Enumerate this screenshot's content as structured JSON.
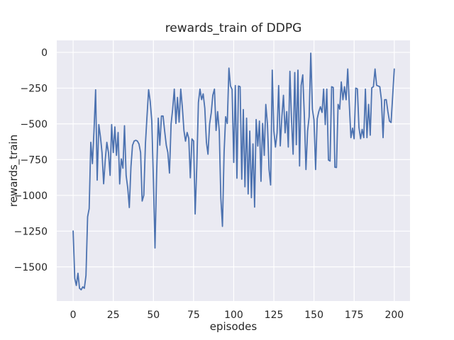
{
  "chart_data": {
    "type": "line",
    "title": "rewards_train of DDPG",
    "xlabel": "episodes",
    "ylabel": "rewards_train",
    "xlim": [
      -10.2,
      209.8
    ],
    "ylim": [
      -1739,
      84
    ],
    "grid": true,
    "legend": false,
    "xticks": {
      "values": [
        0,
        25,
        50,
        75,
        100,
        125,
        150,
        175,
        200
      ],
      "labels": [
        "0",
        "25",
        "50",
        "75",
        "100",
        "125",
        "150",
        "175",
        "200"
      ]
    },
    "yticks": {
      "values": [
        0,
        -250,
        -500,
        -750,
        -1000,
        -1250,
        -1500
      ],
      "labels": [
        "0",
        "−250",
        "−500",
        "−750",
        "−1000",
        "−1250",
        "−1500"
      ]
    },
    "style": {
      "figure_bg": "#ffffff",
      "axes_bg": "#eaeaf2",
      "grid_color": "#ffffff",
      "line_color": "#4c72b0",
      "text_color": "#262626",
      "line_width": 1.8,
      "grid_width": 1.2
    },
    "series": [
      {
        "name": "rewards_train",
        "x_start": 0,
        "x_step": 1,
        "values": [
          -1249,
          -1580,
          -1630,
          -1545,
          -1650,
          -1660,
          -1640,
          -1650,
          -1560,
          -1150,
          -1093,
          -629,
          -778,
          -550,
          -262,
          -894,
          -505,
          -590,
          -700,
          -919,
          -750,
          -629,
          -700,
          -860,
          -505,
          -700,
          -521,
          -720,
          -560,
          -920,
          -745,
          -810,
          -513,
          -860,
          -950,
          -1085,
          -800,
          -650,
          -620,
          -615,
          -620,
          -640,
          -700,
          -1040,
          -1000,
          -640,
          -450,
          -261,
          -340,
          -480,
          -900,
          -1368,
          -850,
          -460,
          -649,
          -445,
          -445,
          -550,
          -649,
          -700,
          -844,
          -500,
          -397,
          -257,
          -497,
          -315,
          -488,
          -257,
          -380,
          -546,
          -621,
          -560,
          -600,
          -877,
          -605,
          -620,
          -1130,
          -800,
          -350,
          -257,
          -330,
          -290,
          -390,
          -629,
          -712,
          -500,
          -422,
          -300,
          -257,
          -546,
          -414,
          -550,
          -1018,
          -1217,
          -700,
          -450,
          -497,
          -110,
          -235,
          -260,
          -770,
          -232,
          -880,
          -235,
          -240,
          -887,
          -400,
          -940,
          -460,
          -990,
          -550,
          -1016,
          -640,
          -1082,
          -470,
          -655,
          -480,
          -902,
          -497,
          -720,
          -364,
          -500,
          -819,
          -927,
          -124,
          -546,
          -662,
          -563,
          -232,
          -654,
          -447,
          -300,
          -563,
          -414,
          -662,
          -132,
          -464,
          -712,
          -141,
          -646,
          -124,
          -795,
          -232,
          -157,
          -450,
          -819,
          -550,
          -450,
          -5,
          -397,
          -472,
          -819,
          -464,
          -414,
          -380,
          -420,
          -257,
          -505,
          -257,
          -753,
          -760,
          -240,
          -245,
          -803,
          -805,
          -364,
          -397,
          -207,
          -331,
          -240,
          -331,
          -116,
          -364,
          -596,
          -530,
          -604,
          -250,
          -255,
          -525,
          -604,
          -538,
          -596,
          -257,
          -596,
          -364,
          -579,
          -248,
          -240,
          -116,
          -230,
          -235,
          -240,
          -331,
          -596,
          -331,
          -330,
          -414,
          -480,
          -490,
          -300,
          -116
        ]
      }
    ]
  }
}
